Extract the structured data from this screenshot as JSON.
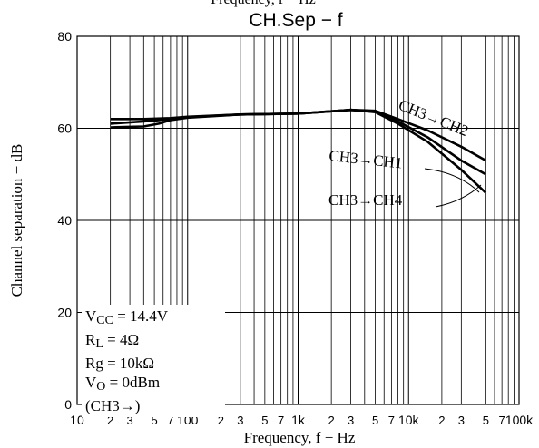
{
  "header_clip": "Frequency, f − Hz",
  "chart_data": {
    "type": "line",
    "title": "CH.Sep  −  f",
    "xlabel": "Frequency, f  −  Hz",
    "ylabel": "Channel separation  −  dB",
    "xscale": "log",
    "xlim": [
      10,
      100000
    ],
    "ylim": [
      0,
      80
    ],
    "yticks": [
      0,
      20,
      40,
      60,
      80
    ],
    "xtick_labels": [
      {
        "v": 10,
        "t": "10"
      },
      {
        "v": 20,
        "t": "2"
      },
      {
        "v": 30,
        "t": "3"
      },
      {
        "v": 50,
        "t": "5"
      },
      {
        "v": 70,
        "t": "7"
      },
      {
        "v": 100,
        "t": "100"
      },
      {
        "v": 200,
        "t": "2"
      },
      {
        "v": 300,
        "t": "3"
      },
      {
        "v": 500,
        "t": "5"
      },
      {
        "v": 700,
        "t": "7"
      },
      {
        "v": 1000,
        "t": "1k"
      },
      {
        "v": 2000,
        "t": "2"
      },
      {
        "v": 3000,
        "t": "3"
      },
      {
        "v": 5000,
        "t": "5"
      },
      {
        "v": 7000,
        "t": "7"
      },
      {
        "v": 10000,
        "t": "10k"
      },
      {
        "v": 20000,
        "t": "2"
      },
      {
        "v": 30000,
        "t": "3"
      },
      {
        "v": 50000,
        "t": "5"
      },
      {
        "v": 70000,
        "t": "7"
      },
      {
        "v": 100000,
        "t": "100k"
      }
    ],
    "grid": true,
    "series": [
      {
        "name": "CH3→CH2",
        "x": [
          20,
          40,
          70,
          100,
          300,
          1000,
          3000,
          5000,
          8000,
          15000,
          30000,
          50000
        ],
        "y": [
          62,
          62,
          62.2,
          62.5,
          63,
          63.2,
          64,
          63.8,
          62,
          59.5,
          56,
          53
        ]
      },
      {
        "name": "CH3→CH1",
        "x": [
          20,
          40,
          70,
          100,
          300,
          1000,
          3000,
          5000,
          8000,
          15000,
          30000,
          50000
        ],
        "y": [
          61,
          61.5,
          62,
          62.4,
          63,
          63.2,
          64,
          63.6,
          61.5,
          58,
          53,
          50
        ]
      },
      {
        "name": "CH3→CH4",
        "x": [
          20,
          40,
          55,
          70,
          100,
          300,
          1000,
          3000,
          5000,
          8000,
          15000,
          30000,
          50000
        ],
        "y": [
          60.2,
          60.4,
          61,
          61.8,
          62.3,
          63,
          63.2,
          64,
          63.5,
          61,
          57,
          51,
          46
        ]
      }
    ],
    "annotations": [
      "CH3→CH2",
      "CH3→CH1",
      "CH3→CH4"
    ],
    "legend_placement": "bottom-left",
    "conditions": [
      {
        "main": "V",
        "sub": "CC",
        "rest": " = 14.4V"
      },
      {
        "main": "R",
        "sub": "L",
        "rest": " = 4Ω"
      },
      {
        "main": "Rg",
        "sub": "",
        "rest": " = 10kΩ"
      },
      {
        "main": "V",
        "sub": "O",
        "rest": " = 0dBm"
      },
      {
        "main": "(CH3→)",
        "sub": "",
        "rest": ""
      }
    ]
  }
}
